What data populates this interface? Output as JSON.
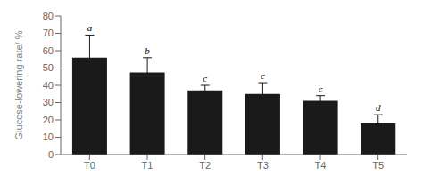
{
  "chart_data": {
    "type": "bar",
    "categories": [
      "T0",
      "T1",
      "T2",
      "T3",
      "T4",
      "T5"
    ],
    "values": [
      56.0,
      47.5,
      37.0,
      35.0,
      31.0,
      18.0
    ],
    "errors": [
      13.0,
      8.5,
      3.0,
      6.5,
      3.0,
      5.0
    ],
    "annotations": [
      "a",
      "b",
      "c",
      "c",
      "c",
      "d"
    ],
    "color": "#1a1a1a",
    "ylabel": "Glucose-lowering rate/ %",
    "ylim": [
      0,
      80
    ],
    "yticks": [
      0,
      10,
      20,
      30,
      40,
      50,
      60,
      70,
      80
    ],
    "grid": false
  }
}
